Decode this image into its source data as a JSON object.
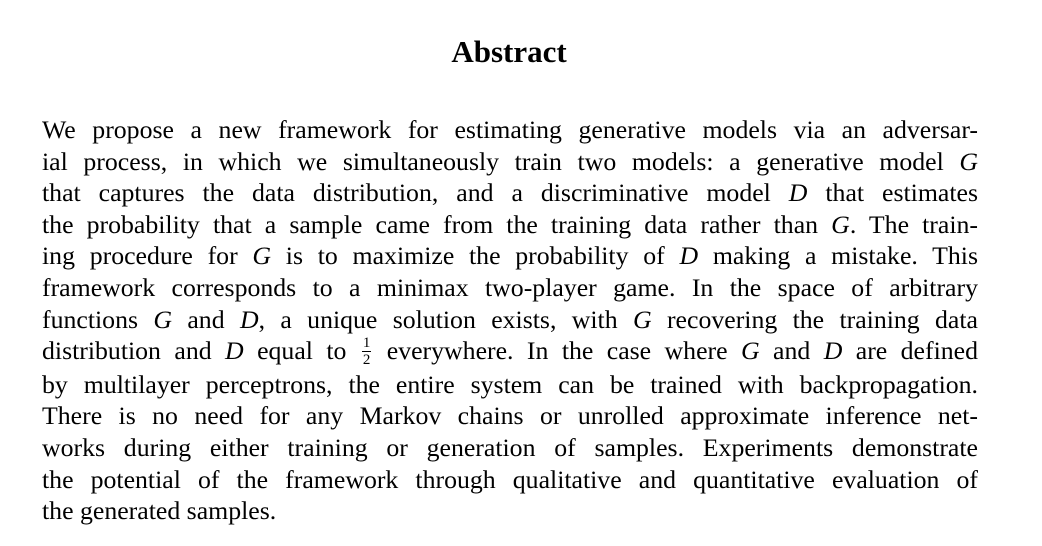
{
  "title": "Abstract",
  "lines": [
    [
      "We propose a new framework for estimating generative models via an adversar-"
    ],
    [
      "ial process, in which we simultaneously train two models: a generative model ",
      "G"
    ],
    [
      "that captures the data distribution, and a discriminative model ",
      "D",
      " that estimates"
    ],
    [
      "the probability that a sample came from the training data rather than ",
      "G",
      ". The train-"
    ],
    [
      "ing procedure for ",
      "G",
      " is to maximize the probability of ",
      "D",
      " making a mistake.  This"
    ],
    [
      "framework corresponds to a minimax two-player game.  In the space of arbitrary"
    ],
    [
      "functions ",
      "G",
      " and ",
      "D",
      ", a unique solution exists, with ",
      "G",
      " recovering the training data"
    ],
    [
      "distribution and ",
      "D",
      " equal to ",
      "1/2",
      " everywhere. In the case where ",
      "G",
      " and ",
      "D",
      " are defined"
    ],
    [
      "by multilayer perceptrons, the entire system can be trained with backpropagation."
    ],
    [
      "There is no need for any Markov chains or unrolled approximate inference net-"
    ],
    [
      "works during either training or generation of samples. Experiments demonstrate"
    ],
    [
      "the potential of the framework through qualitative and quantitative evaluation of"
    ],
    [
      "the generated samples."
    ]
  ],
  "fraction": {
    "numerator": "1",
    "denominator": "2"
  }
}
